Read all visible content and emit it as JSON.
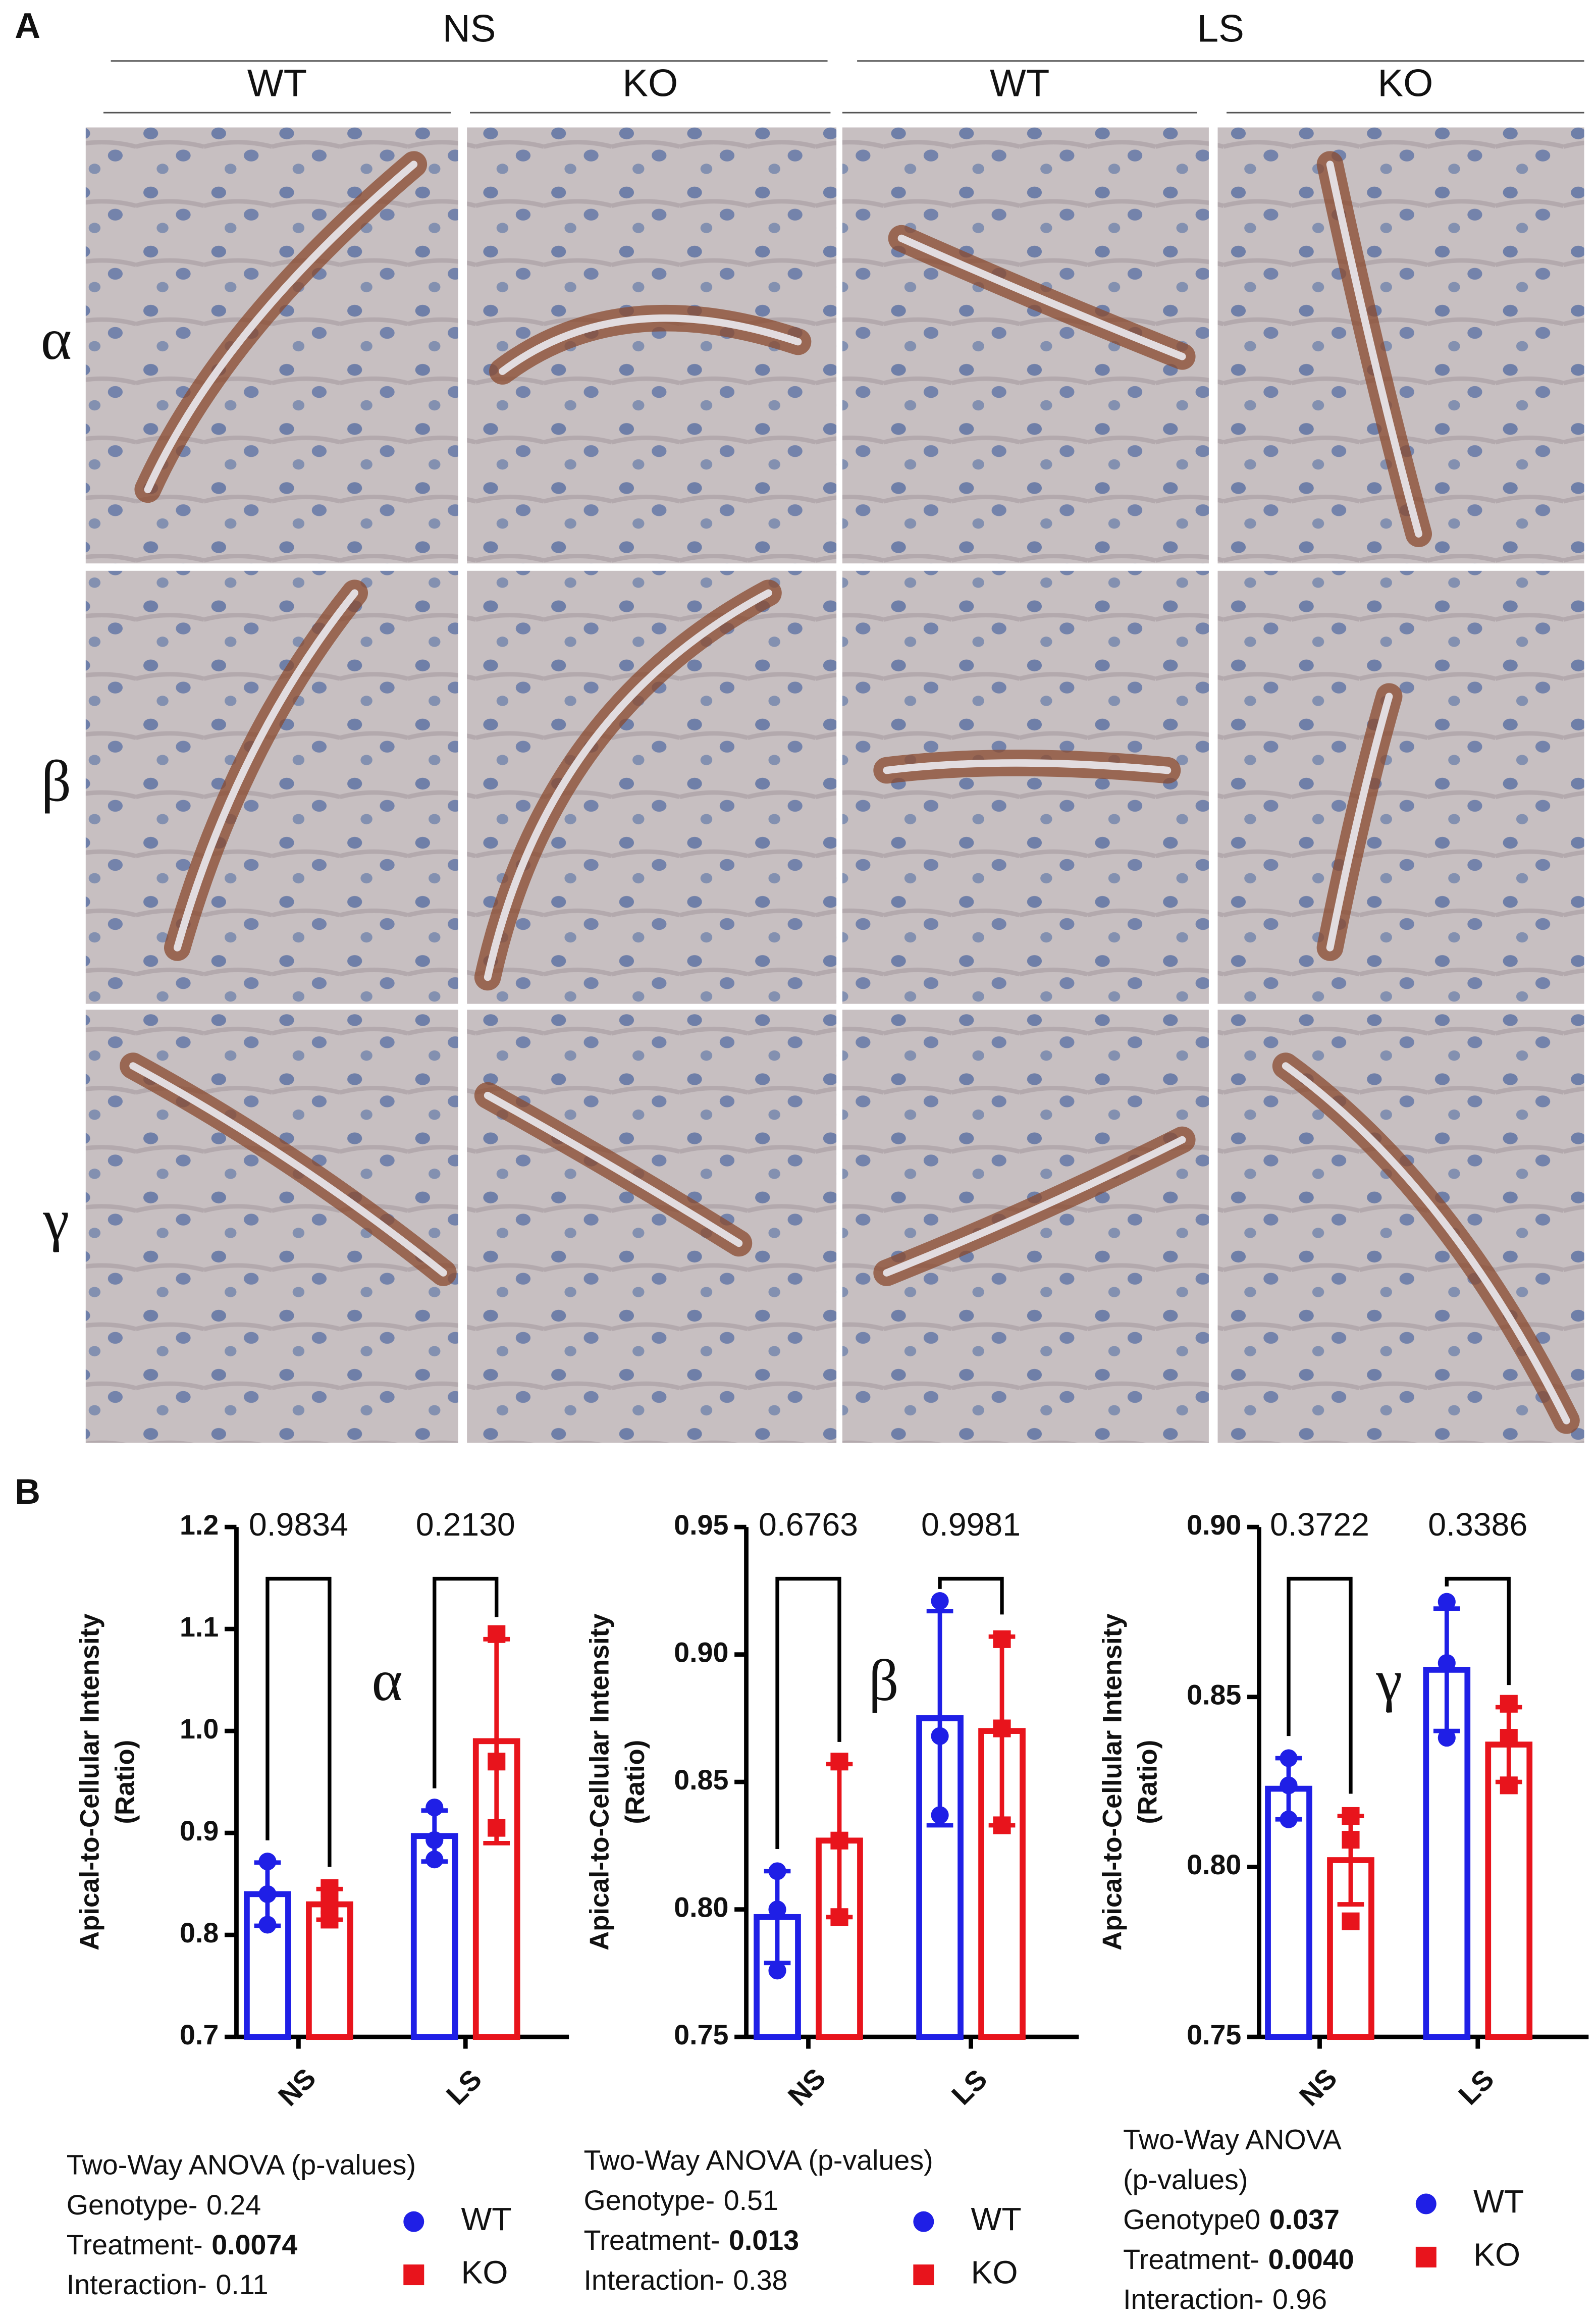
{
  "panel_a": {
    "label": "A",
    "groups": [
      {
        "label": "NS",
        "columns": [
          "WT",
          "KO"
        ]
      },
      {
        "label": "LS",
        "columns": [
          "WT",
          "KO"
        ]
      }
    ],
    "rows": [
      "α",
      "β",
      "γ"
    ]
  },
  "panel_b": {
    "label": "B"
  },
  "chart_data": [
    {
      "type": "bar",
      "annotation": "α",
      "y_label": [
        "Apical-to-Cellular Intensity",
        "(Ratio)"
      ],
      "categories": [
        "NS",
        "LS"
      ],
      "ylim": [
        0.7,
        1.2
      ],
      "yticks": [
        0.7,
        0.8,
        0.9,
        {
          "value": 1,
          "label": "1.0"
        },
        1.1,
        1.2
      ],
      "series": [
        {
          "name": "WT",
          "color": "#1f1fe6",
          "marker": "circle",
          "values": [
            0.84,
            0.897
          ],
          "errors": [
            0.031,
            0.025
          ],
          "points": [
            [
              0.872,
              0.84,
              0.81
            ],
            [
              0.925,
              0.893,
              0.874
            ]
          ]
        },
        {
          "name": "KO",
          "color": "#e8141c",
          "marker": "square",
          "values": [
            0.83,
            0.99
          ],
          "errors": [
            0.015,
            0.1
          ],
          "points": [
            [
              0.846,
              0.829,
              0.815
            ],
            [
              1.095,
              0.97,
              0.905
            ]
          ]
        }
      ],
      "p_values": [
        "0.9834",
        "0.2130"
      ],
      "anova": [
        "Two-Way ANOVA (p-values)",
        {
          "text": "Genotype-",
          "value": "0.24",
          "bold": false
        },
        {
          "text": "Treatment-",
          "value": "0.0074",
          "bold": true
        },
        {
          "text": "Interaction-",
          "value": "0.11",
          "bold": false
        }
      ]
    },
    {
      "type": "bar",
      "annotation": "β",
      "y_label": [
        "Apical-to-Cellular Intensity",
        "(Ratio)"
      ],
      "categories": [
        "NS",
        "LS"
      ],
      "ylim": [
        0.75,
        0.95
      ],
      "yticks": [
        0.75,
        {
          "value": 0.8,
          "label": "0.80"
        },
        0.85,
        {
          "value": 0.9,
          "label": "0.90"
        },
        0.95
      ],
      "series": [
        {
          "name": "WT",
          "color": "#1f1fe6",
          "marker": "circle",
          "values": [
            0.797,
            0.875
          ],
          "errors": [
            0.018,
            0.042
          ],
          "points": [
            [
              0.815,
              0.8,
              0.776
            ],
            [
              0.921,
              0.868,
              0.837
            ]
          ]
        },
        {
          "name": "KO",
          "color": "#e8141c",
          "marker": "square",
          "values": [
            0.827,
            0.87
          ],
          "errors": [
            0.03,
            0.037
          ],
          "points": [
            [
              0.858,
              0.827,
              0.797
            ],
            [
              0.906,
              0.871,
              0.833
            ]
          ]
        }
      ],
      "p_values": [
        "0.6763",
        "0.9981"
      ],
      "anova": [
        "Two-Way ANOVA (p-values)",
        {
          "text": "Genotype-",
          "value": "0.51",
          "bold": false
        },
        {
          "text": "Treatment-",
          "value": "0.013",
          "bold": true
        },
        {
          "text": "Interaction-",
          "value": "0.38",
          "bold": false
        }
      ]
    },
    {
      "type": "bar",
      "annotation": "γ",
      "y_label": [
        "Apical-to-Cellular Intensity",
        "(Ratio)"
      ],
      "categories": [
        "NS",
        "LS"
      ],
      "ylim": [
        0.75,
        0.9
      ],
      "yticks": [
        0.75,
        {
          "value": 0.8,
          "label": "0.80"
        },
        0.85,
        {
          "value": 0.9,
          "label": "0.90"
        }
      ],
      "series": [
        {
          "name": "WT",
          "color": "#1f1fe6",
          "marker": "circle",
          "values": [
            0.823,
            0.858
          ],
          "errors": [
            0.009,
            0.018
          ],
          "points": [
            [
              0.832,
              0.824,
              0.814
            ],
            [
              0.878,
              0.86,
              0.838
            ]
          ]
        },
        {
          "name": "KO",
          "color": "#e8141c",
          "marker": "square",
          "values": [
            0.802,
            0.836
          ],
          "errors": [
            0.013,
            0.011
          ],
          "points": [
            [
              0.815,
              0.808,
              0.784
            ],
            [
              0.848,
              0.838,
              0.824
            ]
          ]
        }
      ],
      "p_values": [
        "0.3722",
        "0.3386"
      ],
      "anova": [
        "Two-Way ANOVA",
        "(p-values)",
        {
          "text": "Genotype0",
          "value": "0.037",
          "bold": true
        },
        {
          "text": "Treatment-",
          "value": "0.0040",
          "bold": true
        },
        {
          "text": "Interaction-",
          "value": "0.96",
          "bold": false
        }
      ]
    }
  ]
}
